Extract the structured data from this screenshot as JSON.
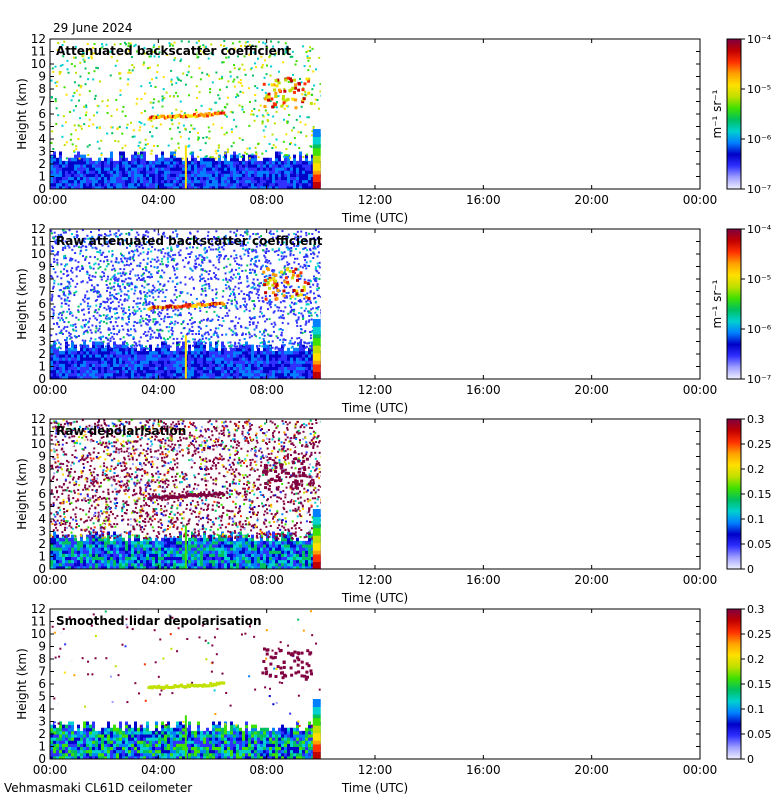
{
  "header": {
    "date": "29 June 2024"
  },
  "footer": {
    "instrument": "Vehmasmaki CL61D ceilometer"
  },
  "chart_data": [
    {
      "type": "heatmap",
      "title": "Attenuated backscatter coefficient",
      "xlabel": "Time (UTC)",
      "ylabel": "Height (km)",
      "x_ticks": [
        "00:00",
        "04:00",
        "08:00",
        "12:00",
        "16:00",
        "20:00",
        "00:00"
      ],
      "y_ticks": [
        0,
        1,
        2,
        3,
        4,
        5,
        6,
        7,
        8,
        9,
        10,
        11,
        12
      ],
      "ylim": [
        0,
        12
      ],
      "x_range_hours": [
        0,
        24
      ],
      "data_end_hour": 10,
      "colorbar": {
        "scale": "log",
        "label": "m⁻¹ sr⁻¹",
        "ticks": [
          "10⁻⁷",
          "10⁻⁶",
          "10⁻⁵",
          "10⁻⁴"
        ]
      }
    },
    {
      "type": "heatmap",
      "title": "Raw attenuated backscatter coefficient",
      "xlabel": "Time (UTC)",
      "ylabel": "Height (km)",
      "x_ticks": [
        "00:00",
        "04:00",
        "08:00",
        "12:00",
        "16:00",
        "20:00",
        "00:00"
      ],
      "y_ticks": [
        0,
        1,
        2,
        3,
        4,
        5,
        6,
        7,
        8,
        9,
        10,
        11,
        12
      ],
      "ylim": [
        0,
        12
      ],
      "x_range_hours": [
        0,
        24
      ],
      "data_end_hour": 10,
      "colorbar": {
        "scale": "log",
        "label": "m⁻¹ sr⁻¹",
        "ticks": [
          "10⁻⁷",
          "10⁻⁶",
          "10⁻⁵",
          "10⁻⁴"
        ]
      }
    },
    {
      "type": "heatmap",
      "title": "Raw depolarisation",
      "xlabel": "Time (UTC)",
      "ylabel": "Height (km)",
      "x_ticks": [
        "00:00",
        "04:00",
        "08:00",
        "12:00",
        "16:00",
        "20:00",
        "00:00"
      ],
      "y_ticks": [
        0,
        1,
        2,
        3,
        4,
        5,
        6,
        7,
        8,
        9,
        10,
        11,
        12
      ],
      "ylim": [
        0,
        12
      ],
      "x_range_hours": [
        0,
        24
      ],
      "data_end_hour": 10,
      "colorbar": {
        "scale": "linear",
        "label": "",
        "ticks": [
          "0",
          "0.05",
          "0.1",
          "0.15",
          "0.2",
          "0.25",
          "0.3"
        ]
      }
    },
    {
      "type": "heatmap",
      "title": "Smoothed lidar depolarisation",
      "xlabel": "Time (UTC)",
      "ylabel": "Height (km)",
      "x_ticks": [
        "00:00",
        "04:00",
        "08:00",
        "12:00",
        "16:00",
        "20:00",
        "00:00"
      ],
      "y_ticks": [
        0,
        1,
        2,
        3,
        4,
        5,
        6,
        7,
        8,
        9,
        10,
        11,
        12
      ],
      "ylim": [
        0,
        12
      ],
      "x_range_hours": [
        0,
        24
      ],
      "data_end_hour": 10,
      "colorbar": {
        "scale": "linear",
        "label": "",
        "ticks": [
          "0",
          "0.05",
          "0.1",
          "0.15",
          "0.2",
          "0.25",
          "0.3"
        ]
      }
    }
  ],
  "colors": {
    "colormap": [
      "#f0f0ff",
      "#a0a0ff",
      "#3030ff",
      "#0000c8",
      "#0080ff",
      "#00d0d0",
      "#00c060",
      "#40e000",
      "#c0e000",
      "#ffe000",
      "#ffa000",
      "#ff3000",
      "#c00000",
      "#800040"
    ]
  }
}
